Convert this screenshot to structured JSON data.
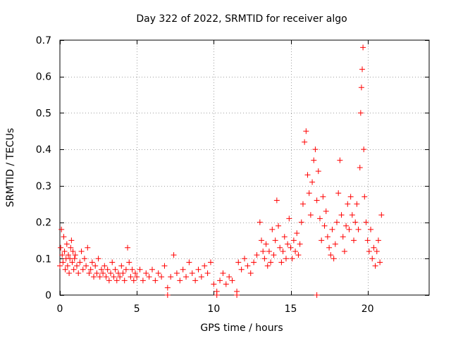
{
  "chart_data": {
    "type": "scatter",
    "title": "Day 322 of 2022, SRMTID for receiver algo",
    "xlabel": "GPS time / hours",
    "ylabel": "SRMTID / TECUs",
    "xlim": [
      0,
      24
    ],
    "ylim": [
      0,
      0.7
    ],
    "xticks": [
      0,
      5,
      10,
      15,
      20
    ],
    "xtick_labels": [
      "0",
      "5",
      "10",
      "15",
      "20"
    ],
    "yticks": [
      0,
      0.1,
      0.2,
      0.3,
      0.4,
      0.5,
      0.6,
      0.7
    ],
    "ytick_labels": [
      "0",
      "0.1",
      "0.2",
      "0.3",
      "0.4",
      "0.5",
      "0.6",
      "0.7"
    ],
    "grid": true,
    "marker": "plus",
    "series": [
      {
        "name": "SRMTID",
        "color": "#ff0000",
        "points": [
          [
            0.0,
            0.08
          ],
          [
            0.05,
            0.13
          ],
          [
            0.1,
            0.18
          ],
          [
            0.15,
            0.11
          ],
          [
            0.2,
            0.09
          ],
          [
            0.25,
            0.16
          ],
          [
            0.3,
            0.12
          ],
          [
            0.35,
            0.07
          ],
          [
            0.4,
            0.1
          ],
          [
            0.45,
            0.14
          ],
          [
            0.5,
            0.08
          ],
          [
            0.55,
            0.11
          ],
          [
            0.6,
            0.06
          ],
          [
            0.65,
            0.1
          ],
          [
            0.7,
            0.13
          ],
          [
            0.75,
            0.15
          ],
          [
            0.8,
            0.09
          ],
          [
            0.85,
            0.12
          ],
          [
            0.9,
            0.07
          ],
          [
            0.95,
            0.1
          ],
          [
            1.0,
            0.11
          ],
          [
            1.1,
            0.08
          ],
          [
            1.2,
            0.06
          ],
          [
            1.3,
            0.09
          ],
          [
            1.4,
            0.12
          ],
          [
            1.5,
            0.07
          ],
          [
            1.6,
            0.1
          ],
          [
            1.7,
            0.08
          ],
          [
            1.8,
            0.13
          ],
          [
            1.9,
            0.06
          ],
          [
            2.0,
            0.07
          ],
          [
            2.1,
            0.09
          ],
          [
            2.2,
            0.05
          ],
          [
            2.3,
            0.08
          ],
          [
            2.4,
            0.06
          ],
          [
            2.5,
            0.1
          ],
          [
            2.6,
            0.05
          ],
          [
            2.7,
            0.07
          ],
          [
            2.8,
            0.06
          ],
          [
            2.9,
            0.08
          ],
          [
            3.0,
            0.05
          ],
          [
            3.1,
            0.07
          ],
          [
            3.2,
            0.04
          ],
          [
            3.3,
            0.06
          ],
          [
            3.4,
            0.09
          ],
          [
            3.5,
            0.05
          ],
          [
            3.6,
            0.07
          ],
          [
            3.7,
            0.04
          ],
          [
            3.8,
            0.06
          ],
          [
            3.9,
            0.05
          ],
          [
            4.0,
            0.08
          ],
          [
            4.1,
            0.06
          ],
          [
            4.2,
            0.04
          ],
          [
            4.3,
            0.07
          ],
          [
            4.4,
            0.13
          ],
          [
            4.5,
            0.09
          ],
          [
            4.6,
            0.05
          ],
          [
            4.7,
            0.07
          ],
          [
            4.8,
            0.04
          ],
          [
            4.9,
            0.06
          ],
          [
            5.0,
            0.05
          ],
          [
            5.2,
            0.07
          ],
          [
            5.4,
            0.04
          ],
          [
            5.6,
            0.06
          ],
          [
            5.8,
            0.05
          ],
          [
            6.0,
            0.07
          ],
          [
            6.2,
            0.04
          ],
          [
            6.4,
            0.06
          ],
          [
            6.6,
            0.05
          ],
          [
            6.8,
            0.08
          ],
          [
            7.0,
            0.02
          ],
          [
            7.2,
            0.05
          ],
          [
            7.4,
            0.11
          ],
          [
            7.6,
            0.06
          ],
          [
            7.8,
            0.04
          ],
          [
            8.0,
            0.07
          ],
          [
            8.2,
            0.05
          ],
          [
            8.4,
            0.09
          ],
          [
            8.6,
            0.06
          ],
          [
            8.8,
            0.04
          ],
          [
            9.0,
            0.07
          ],
          [
            9.2,
            0.05
          ],
          [
            9.4,
            0.08
          ],
          [
            9.6,
            0.06
          ],
          [
            9.8,
            0.09
          ],
          [
            10.0,
            0.03
          ],
          [
            10.2,
            0.01
          ],
          [
            10.4,
            0.04
          ],
          [
            10.6,
            0.06
          ],
          [
            10.8,
            0.03
          ],
          [
            11.0,
            0.05
          ],
          [
            11.2,
            0.04
          ],
          [
            11.5,
            0.01
          ],
          [
            11.6,
            0.09
          ],
          [
            11.8,
            0.07
          ],
          [
            12.0,
            0.1
          ],
          [
            12.2,
            0.08
          ],
          [
            12.4,
            0.06
          ],
          [
            12.6,
            0.09
          ],
          [
            12.8,
            0.11
          ],
          [
            13.0,
            0.2
          ],
          [
            13.1,
            0.15
          ],
          [
            13.2,
            0.12
          ],
          [
            13.3,
            0.1
          ],
          [
            13.4,
            0.14
          ],
          [
            13.5,
            0.08
          ],
          [
            13.6,
            0.12
          ],
          [
            13.7,
            0.09
          ],
          [
            13.8,
            0.18
          ],
          [
            13.9,
            0.11
          ],
          [
            14.0,
            0.15
          ],
          [
            14.1,
            0.26
          ],
          [
            14.2,
            0.19
          ],
          [
            14.3,
            0.13
          ],
          [
            14.4,
            0.09
          ],
          [
            14.5,
            0.12
          ],
          [
            14.6,
            0.16
          ],
          [
            14.7,
            0.1
          ],
          [
            14.8,
            0.14
          ],
          [
            14.9,
            0.21
          ],
          [
            15.0,
            0.13
          ],
          [
            15.1,
            0.1
          ],
          [
            15.2,
            0.15
          ],
          [
            15.3,
            0.12
          ],
          [
            15.4,
            0.17
          ],
          [
            15.5,
            0.11
          ],
          [
            15.6,
            0.14
          ],
          [
            15.7,
            0.2
          ],
          [
            15.8,
            0.25
          ],
          [
            15.9,
            0.42
          ],
          [
            16.0,
            0.45
          ],
          [
            16.1,
            0.33
          ],
          [
            16.2,
            0.28
          ],
          [
            16.3,
            0.22
          ],
          [
            16.4,
            0.31
          ],
          [
            16.5,
            0.37
          ],
          [
            16.6,
            0.4
          ],
          [
            16.7,
            0.26
          ],
          [
            16.8,
            0.34
          ],
          [
            16.9,
            0.21
          ],
          [
            17.0,
            0.15
          ],
          [
            17.1,
            0.27
          ],
          [
            17.2,
            0.19
          ],
          [
            17.3,
            0.23
          ],
          [
            17.4,
            0.16
          ],
          [
            17.5,
            0.13
          ],
          [
            17.6,
            0.11
          ],
          [
            17.7,
            0.18
          ],
          [
            17.8,
            0.1
          ],
          [
            17.9,
            0.14
          ],
          [
            18.0,
            0.2
          ],
          [
            18.1,
            0.28
          ],
          [
            18.2,
            0.37
          ],
          [
            18.3,
            0.22
          ],
          [
            18.4,
            0.16
          ],
          [
            18.5,
            0.12
          ],
          [
            18.6,
            0.19
          ],
          [
            18.7,
            0.25
          ],
          [
            18.8,
            0.18
          ],
          [
            18.9,
            0.27
          ],
          [
            19.0,
            0.22
          ],
          [
            19.1,
            0.15
          ],
          [
            19.2,
            0.2
          ],
          [
            19.3,
            0.25
          ],
          [
            19.4,
            0.18
          ],
          [
            19.5,
            0.35
          ],
          [
            19.55,
            0.5
          ],
          [
            19.6,
            0.57
          ],
          [
            19.65,
            0.62
          ],
          [
            19.7,
            0.68
          ],
          [
            19.75,
            0.4
          ],
          [
            19.8,
            0.27
          ],
          [
            19.9,
            0.2
          ],
          [
            20.0,
            0.15
          ],
          [
            20.1,
            0.12
          ],
          [
            20.2,
            0.18
          ],
          [
            20.3,
            0.1
          ],
          [
            20.4,
            0.13
          ],
          [
            20.5,
            0.08
          ],
          [
            20.6,
            0.12
          ],
          [
            20.7,
            0.15
          ],
          [
            20.8,
            0.09
          ],
          [
            20.9,
            0.22
          ],
          [
            7.0,
            0.0
          ],
          [
            10.2,
            0.0
          ],
          [
            11.5,
            0.0
          ],
          [
            16.7,
            0.0
          ]
        ]
      }
    ]
  }
}
